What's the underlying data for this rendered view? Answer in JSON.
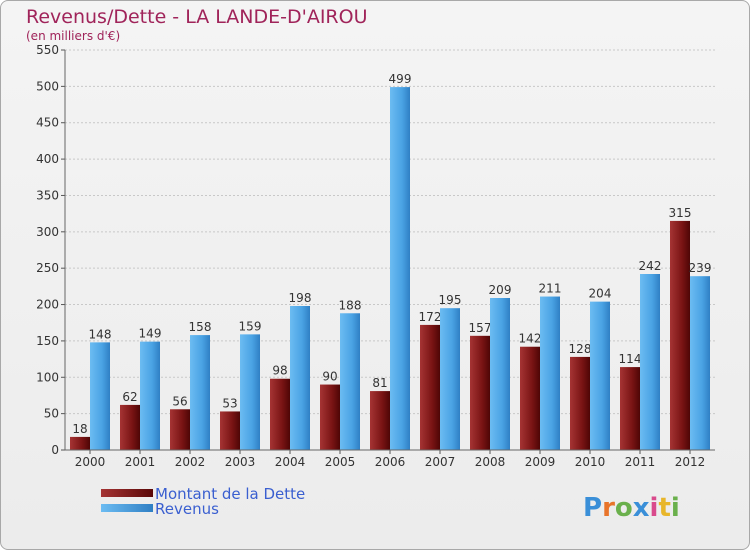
{
  "chart_data": {
    "type": "bar",
    "title": "Revenus/Dette - LA LANDE-D'AIROU",
    "subtitle": "(en milliers d'€)",
    "xlabel": "",
    "ylabel": "",
    "ylim": [
      0,
      550
    ],
    "yticks": [
      0,
      50,
      100,
      150,
      200,
      250,
      300,
      350,
      400,
      450,
      500,
      550
    ],
    "grid": true,
    "legend_position": "bottom-left",
    "categories": [
      "2000",
      "2001",
      "2002",
      "2003",
      "2004",
      "2005",
      "2006",
      "2007",
      "2008",
      "2009",
      "2010",
      "2011",
      "2012"
    ],
    "series": [
      {
        "name": "Montant de la Dette",
        "color": "#8b1a1a",
        "values": [
          18,
          62,
          56,
          53,
          98,
          90,
          81,
          172,
          157,
          142,
          128,
          114,
          315
        ]
      },
      {
        "name": "Revenus",
        "color": "#4ea6e6",
        "values": [
          148,
          149,
          158,
          159,
          198,
          188,
          499,
          195,
          209,
          211,
          204,
          242,
          239
        ]
      }
    ]
  },
  "branding": {
    "logo_text": "Proxiti"
  }
}
